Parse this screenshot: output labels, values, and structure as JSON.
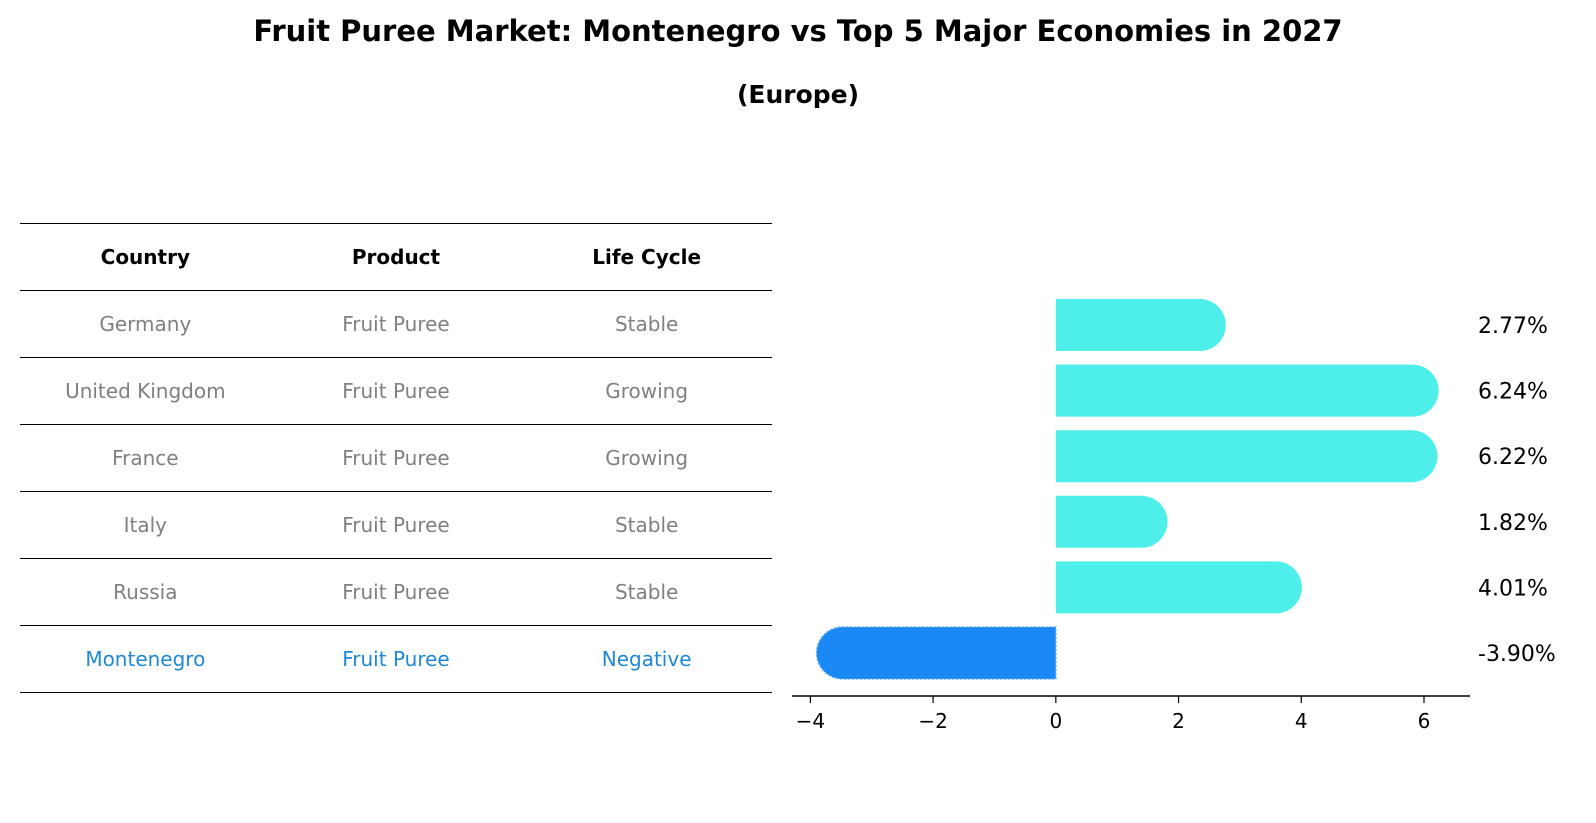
{
  "title": "Fruit Puree Market: Montenegro vs Top 5 Major Economies in 2027",
  "subtitle": "(Europe)",
  "colors": {
    "positive_bar": "#4eeeea",
    "negative_bar": "#1a88f5",
    "highlight_text": "#1e88d6",
    "row_text": "#808080"
  },
  "table": {
    "headers": [
      "Country",
      "Product",
      "Life Cycle"
    ],
    "rows": [
      {
        "country": "Germany",
        "product": "Fruit Puree",
        "life_cycle": "Stable"
      },
      {
        "country": "United Kingdom",
        "product": "Fruit Puree",
        "life_cycle": "Growing"
      },
      {
        "country": "France",
        "product": "Fruit Puree",
        "life_cycle": "Growing"
      },
      {
        "country": "Italy",
        "product": "Fruit Puree",
        "life_cycle": "Stable"
      },
      {
        "country": "Russia",
        "product": "Fruit Puree",
        "life_cycle": "Stable"
      },
      {
        "country": "Montenegro",
        "product": "Fruit Puree",
        "life_cycle": "Negative"
      }
    ]
  },
  "chart_data": {
    "type": "bar",
    "orientation": "horizontal",
    "title": "Fruit Puree Market: Montenegro vs Top 5 Major Economies in 2027",
    "subtitle": "(Europe)",
    "categories": [
      "Germany",
      "United Kingdom",
      "France",
      "Italy",
      "Russia",
      "Montenegro"
    ],
    "values": [
      2.77,
      6.24,
      6.22,
      1.82,
      4.01,
      -3.9
    ],
    "value_labels": [
      "2.77%",
      "6.24%",
      "6.22%",
      "1.82%",
      "4.01%",
      "-3.90%"
    ],
    "xlim": [
      -4.3,
      6.75
    ],
    "xticks": [
      -4,
      -2,
      0,
      2,
      4,
      6
    ],
    "xtick_labels": [
      "−4",
      "−2",
      "0",
      "2",
      "4",
      "6"
    ],
    "grid": false,
    "highlight_category": "Montenegro"
  }
}
